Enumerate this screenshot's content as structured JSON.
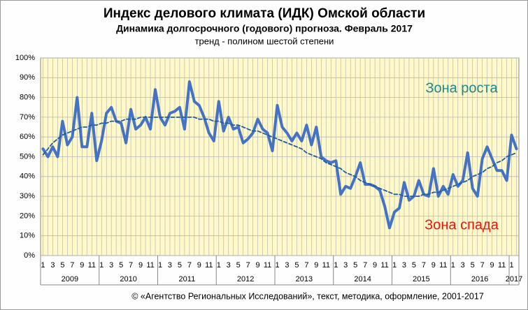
{
  "chart_data": {
    "type": "line",
    "title": "Индекс делового климата (ИДК) Омской области",
    "subtitle": "Динамика  долгосрочного (годового) прогноза. Февраль  2017",
    "note": "тренд - полином шестой степени",
    "annotations": [
      {
        "text": "Зона роста",
        "color": "#1a8a8a"
      },
      {
        "text": "Зона спада",
        "color": "#e8170e"
      }
    ],
    "footer": "© «Агентство Региональных Исследований», текст, методика, оформление, 2001-2017",
    "categories": [
      "1",
      null,
      "3",
      null,
      "5",
      null,
      "7",
      null,
      "9",
      null,
      "11",
      null,
      "1",
      null,
      "3",
      null,
      "5",
      null,
      "7",
      null,
      "9",
      null,
      "11",
      null,
      "1",
      null,
      "3",
      null,
      "5",
      null,
      "7",
      null,
      "9",
      null,
      "11",
      null,
      "1",
      null,
      "3",
      null,
      "5",
      null,
      "7",
      null,
      "9",
      null,
      "11",
      null,
      "1",
      null,
      "3",
      null,
      "5",
      null,
      "7",
      null,
      "9",
      null,
      "11",
      null,
      "1",
      null,
      "3",
      null,
      "5",
      null,
      "7",
      null,
      "9",
      null,
      "11",
      null,
      "1",
      null,
      "3",
      null,
      "5",
      null,
      "7",
      null,
      "9",
      null,
      "11",
      null,
      "1",
      null,
      "3",
      null,
      "5",
      null,
      "7",
      null,
      "9",
      null,
      "11",
      null,
      "1",
      null
    ],
    "groups": [
      "2009",
      "2010",
      "2011",
      "2012",
      "2013",
      "2014",
      "2015",
      "2016",
      "2017"
    ],
    "series": [
      {
        "color": "#4472c4",
        "values": [
          54,
          50,
          55,
          50,
          68,
          56,
          60,
          80,
          55,
          55,
          72,
          48,
          58,
          72,
          75,
          68,
          67,
          57,
          74,
          64,
          66,
          70,
          64,
          84,
          70,
          66,
          72,
          73,
          75,
          64,
          88,
          78,
          76,
          70,
          62,
          58,
          78,
          63,
          70,
          64,
          65,
          57,
          59,
          62,
          69,
          64,
          62,
          53,
          76,
          65,
          62,
          58,
          62,
          58,
          66,
          56,
          65,
          50,
          48,
          47,
          48,
          31,
          35,
          34,
          40,
          47,
          36,
          36,
          35,
          33,
          25,
          14,
          22,
          24,
          37,
          28,
          30,
          38,
          31,
          30,
          44,
          30,
          35,
          31,
          41,
          35,
          38,
          52,
          34,
          30,
          49,
          55,
          49,
          43,
          43,
          38,
          61,
          54
        ]
      },
      {
        "color": "#1f5fa0",
        "dashed": true,
        "values": [
          51,
          54,
          57,
          59,
          61,
          62,
          63,
          64,
          65,
          65,
          66,
          66,
          67,
          67,
          68,
          68,
          68,
          69,
          69,
          69,
          70,
          70,
          70,
          70,
          70,
          70,
          70,
          70,
          70,
          70,
          70,
          70,
          69,
          69,
          69,
          68,
          68,
          67,
          67,
          66,
          66,
          65,
          64,
          63,
          63,
          62,
          61,
          60,
          59,
          58,
          57,
          56,
          55,
          54,
          52,
          51,
          50,
          49,
          47,
          46,
          45,
          44,
          42,
          41,
          40,
          38,
          37,
          36,
          35,
          34,
          33,
          32,
          31,
          31,
          30,
          30,
          30,
          30,
          31,
          31,
          32,
          32,
          33,
          34,
          35,
          36,
          37,
          38,
          40,
          41,
          42,
          44,
          45,
          47,
          48,
          50,
          51,
          52
        ]
      }
    ],
    "ylim": [
      0,
      100
    ],
    "yticks": [
      {
        "value": 0,
        "label": "0%"
      },
      {
        "value": 10,
        "label": "10%"
      },
      {
        "value": 20,
        "label": "20%"
      },
      {
        "value": 30,
        "label": "30%"
      },
      {
        "value": 40,
        "label": "40%"
      },
      {
        "value": 50,
        "label": "50%"
      },
      {
        "value": 60,
        "label": "60%"
      },
      {
        "value": 70,
        "label": "70%"
      },
      {
        "value": 80,
        "label": "80%"
      },
      {
        "value": 90,
        "label": "90%"
      },
      {
        "value": 100,
        "label": "100%"
      }
    ],
    "grid": true,
    "plot_background": "#fff8c8"
  }
}
